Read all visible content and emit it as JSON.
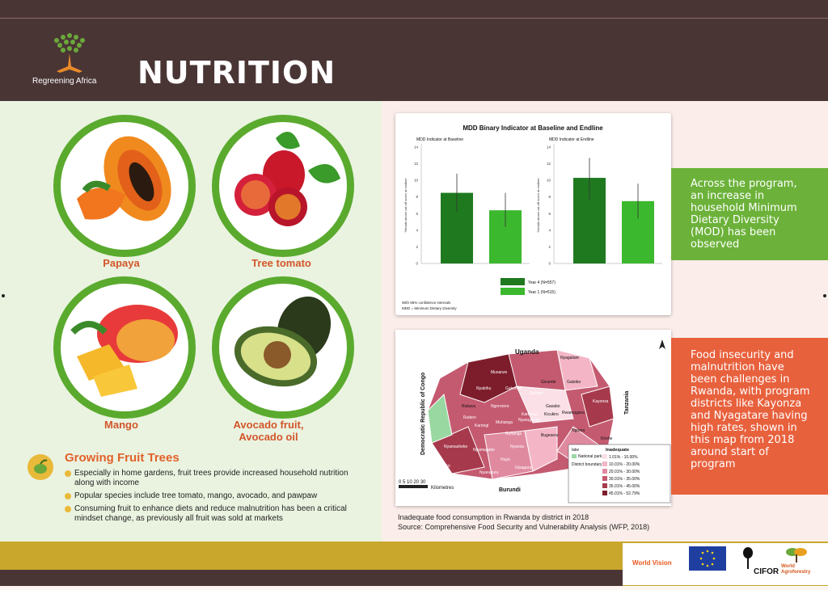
{
  "header": {
    "logo_text": "Regreening Africa",
    "title": "NUTRITION"
  },
  "fruits": [
    {
      "label": "Papaya"
    },
    {
      "label": "Tree tomato"
    },
    {
      "label": "Mango"
    },
    {
      "label": "Avocado fruit, Avocado oil"
    }
  ],
  "growing": {
    "title": "Growing Fruit Trees",
    "bullets": [
      "Especially in home gardens, fruit trees provide increased household nutrition along with income",
      "Popular species include tree tomato, mango, avocado, and pawpaw",
      "Consuming fruit to enhance diets and reduce malnutrition has been a critical mindset change, as previously all fruit was sold at markets"
    ]
  },
  "chart_data": {
    "type": "bar",
    "title": "MDD Binary Indicator at Baseline and Endline",
    "panels": [
      {
        "subtitle": "MDD Indicator at Baseline",
        "values": [
          8.5,
          6.4
        ],
        "errors": [
          [
            6.2,
            10.8
          ],
          [
            4.4,
            8.5
          ]
        ]
      },
      {
        "subtitle": "MDD Indicator at Endline",
        "values": [
          10.3,
          7.5
        ],
        "errors": [
          [
            7.7,
            12.7
          ],
          [
            5.4,
            9.6
          ]
        ]
      }
    ],
    "series": [
      {
        "name": "Year 4 (N=557)",
        "color": "#1f7a1f"
      },
      {
        "name": "Year 1 (N=515)",
        "color": "#3cb82e"
      }
    ],
    "ylabel": "%mdds above cut-off score at endline",
    "ylim": [
      0,
      14
    ],
    "yticks": [
      0,
      2,
      4,
      6,
      8,
      10,
      12,
      14
    ],
    "notes": [
      "With 95% confidence intervals",
      "MDD = Minimum Dietary Diversity"
    ]
  },
  "map": {
    "labels": [
      "Uganda",
      "Tanzania",
      "Burundi",
      "Democratic Republic of Congo",
      "Nyagatare",
      "Musanze",
      "Gicumbi",
      "Gatsibo",
      "Rulindo",
      "Nyabihu",
      "Rubavu",
      "Gakenke",
      "Kayonza",
      "Gasabo",
      "Rutsiro",
      "Kicukiro",
      "Rwamagana",
      "Ngororero",
      "Kamonyi",
      "Nyarugenge",
      "Ngoma",
      "Karongi",
      "Muhanga",
      "Ruhango",
      "Bugesera",
      "Kirehe",
      "Rusizi",
      "Nyamasheke",
      "Nyanza",
      "Nyamagabe",
      "Huye",
      "Gisagara",
      "Nyaruguru"
    ],
    "legend_title_left": "lake",
    "legend_title_right": "Inadequate",
    "legend_left": [
      "National park",
      "District boundary"
    ],
    "legend_right": [
      "1.01% - 10.00%",
      "10.01% - 20.00%",
      "20.01% - 30.00%",
      "30.01% - 35.00%",
      "35.01% - 45.00%",
      "45.01% - 52.79%"
    ],
    "legend_colors": [
      "#fbe0e8",
      "#f4b6c6",
      "#e08aa0",
      "#c45a70",
      "#a63a4c",
      "#7d1d2c"
    ],
    "scale_text": "0 5 10  20  30",
    "scale_unit": "Kilometres"
  },
  "callouts": {
    "green": "Across the program, an increase in household Minimum Dietary Diversity (MOD) has been observed",
    "orange": "Food insecurity and malnutrition have been challenges in Rwanda, with program districts like Kayonza and Nyagatare having high rates, shown in this map from 2018 around start of program"
  },
  "caption": {
    "line1": "Inadequate food consumption in Rwanda by district in 2018",
    "line2": "Source: Comprehensive Food Security and Vulnerability Analysis (WFP, 2018)"
  },
  "partners": {
    "worldvision": "World Vision",
    "cifor": "CIFOR",
    "agroforestry": "World Agroforestry"
  },
  "colors": {
    "brand_dark": "#4a3535",
    "green": "#5aaa2e",
    "orange": "#e8613d",
    "gold": "#c9a72c"
  }
}
